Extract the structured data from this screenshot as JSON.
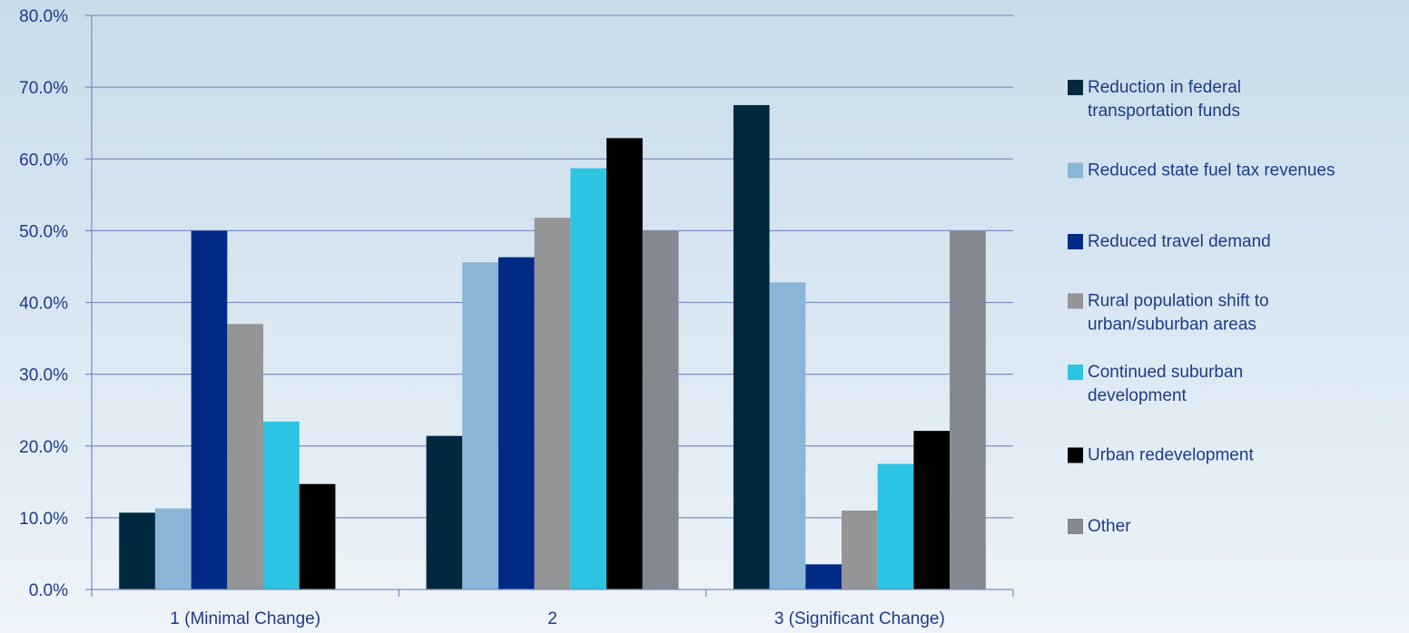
{
  "chart_data": {
    "type": "bar",
    "categories": [
      "1 (Minimal Change)",
      "2",
      "3 (Significant Change)"
    ],
    "ylim": [
      0,
      80
    ],
    "yticks": [
      0,
      10,
      20,
      30,
      40,
      50,
      60,
      70,
      80
    ],
    "ytick_format": "%.1f%%",
    "ytick_labels": [
      "0.0%",
      "10.0%",
      "20.0%",
      "30.0%",
      "40.0%",
      "50.0%",
      "60.0%",
      "70.0%",
      "80.0%"
    ],
    "grid": true,
    "legend_position": "right",
    "series": [
      {
        "name": "Reduction in federal transportation funds",
        "legend_lines": [
          "Reduction in federal",
          "transportation funds"
        ],
        "color": "#00283f",
        "values": [
          10.7,
          21.4,
          67.5
        ]
      },
      {
        "name": "Reduced state fuel tax revenues",
        "legend_lines": [
          "Reduced state fuel tax revenues"
        ],
        "color": "#8ab5d6",
        "values": [
          11.3,
          45.6,
          42.8
        ]
      },
      {
        "name": "Reduced travel demand",
        "legend_lines": [
          "Reduced travel demand"
        ],
        "color": "#002a86",
        "values": [
          50.0,
          46.3,
          3.5
        ]
      },
      {
        "name": "Rural population shift to urban/suburban areas",
        "legend_lines": [
          "Rural population shift to",
          "urban/suburban areas"
        ],
        "color": "#939597",
        "values": [
          37.0,
          51.8,
          11.0
        ]
      },
      {
        "name": "Continued suburban development",
        "legend_lines": [
          "Continued suburban",
          "development"
        ],
        "color": "#2bc4e3",
        "values": [
          23.4,
          58.7,
          17.5
        ]
      },
      {
        "name": "Urban redevelopment",
        "legend_lines": [
          "Urban redevelopment"
        ],
        "color": "#000000",
        "values": [
          14.7,
          62.9,
          22.1
        ]
      },
      {
        "name": "Other",
        "legend_lines": [
          "Other"
        ],
        "color": "#848991",
        "values": [
          0,
          50.0,
          50.0
        ]
      }
    ]
  }
}
